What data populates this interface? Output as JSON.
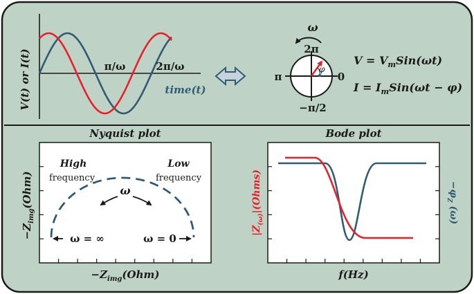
{
  "colors": {
    "panel_bg": "#bfd2c6",
    "panel_border": "#1a1a1a",
    "plot_bg": "#ffffff",
    "red": "#e8202a",
    "teal": "#2f5b73",
    "dark": "#1a1a1a",
    "arrow_fill": "#c7d3d8"
  },
  "waveform": {
    "ylabel": "V(t) or I(t)",
    "xlabel": "time(t)",
    "tick_pi": "π/ω",
    "tick_2pi": "2π/ω"
  },
  "phasor": {
    "omega": "ω",
    "label_top": "2π",
    "label_left": "π",
    "label_right": "0",
    "label_bottom": "−π/2",
    "phi": "φ"
  },
  "equations": {
    "v": "V = VmSin(ωt)",
    "i": "I = ImSin(ωt − φ)"
  },
  "nyquist": {
    "title": "Nyquist plot",
    "ylabel": "−Zimg(Ohm)",
    "xlabel": "−Zimg(Ohm)",
    "high_line1": "High",
    "high_line2": "frequency",
    "low_line1": "Low",
    "low_line2": "frequency",
    "omega": "ω",
    "omega_inf": "ω = ∞",
    "omega_zero": "ω = 0"
  },
  "bode": {
    "title": "Bode plot",
    "ylabel_left": "|Z(ω)|(Ohms)",
    "ylabel_right": "−φZ(ω)",
    "xlabel": "f(Hz)"
  }
}
